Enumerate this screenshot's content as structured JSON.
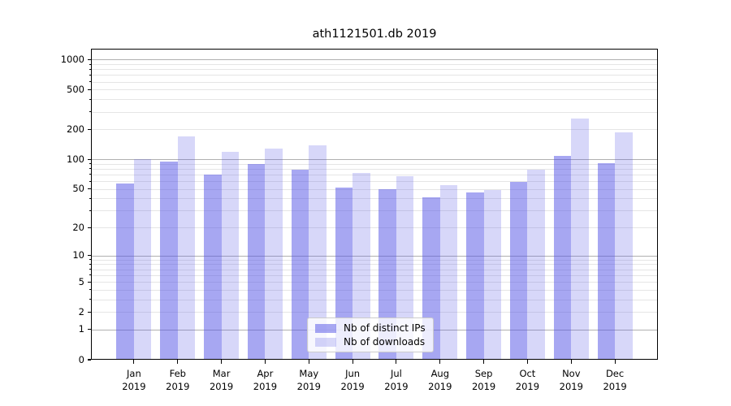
{
  "chart_data": {
    "type": "bar",
    "title": "ath1121501.db 2019",
    "categories": [
      {
        "month": "Jan",
        "year": "2019"
      },
      {
        "month": "Feb",
        "year": "2019"
      },
      {
        "month": "Mar",
        "year": "2019"
      },
      {
        "month": "Apr",
        "year": "2019"
      },
      {
        "month": "May",
        "year": "2019"
      },
      {
        "month": "Jun",
        "year": "2019"
      },
      {
        "month": "Jul",
        "year": "2019"
      },
      {
        "month": "Aug",
        "year": "2019"
      },
      {
        "month": "Sep",
        "year": "2019"
      },
      {
        "month": "Oct",
        "year": "2019"
      },
      {
        "month": "Nov",
        "year": "2019"
      },
      {
        "month": "Dec",
        "year": "2019"
      }
    ],
    "series": [
      {
        "name": "Nb of distinct IPs",
        "color": "rgba(80,80,230,0.5)",
        "values": [
          57,
          94,
          70,
          90,
          79,
          52,
          50,
          41,
          46,
          59,
          109,
          92
        ]
      },
      {
        "name": "Nb of downloads",
        "color": "rgba(80,80,230,0.23)",
        "values": [
          100,
          170,
          118,
          128,
          138,
          73,
          68,
          55,
          49,
          78,
          258,
          187
        ]
      }
    ],
    "yscale": "log1p",
    "ylim": [
      0,
      1286
    ],
    "yticks": [
      1000,
      500,
      200,
      100,
      50,
      20,
      10,
      5,
      2,
      1,
      0
    ],
    "grid": {
      "major": [
        1,
        10,
        100,
        1000
      ],
      "minor": [
        2,
        3,
        4,
        5,
        6,
        7,
        8,
        9,
        20,
        30,
        40,
        50,
        60,
        70,
        80,
        90,
        200,
        300,
        400,
        500,
        600,
        700,
        800,
        900
      ]
    },
    "grid_major_color": "#b0b0b0",
    "grid_minor_color": "#e5e5e5",
    "legend_position": "lower center",
    "xlabel": "",
    "ylabel": ""
  }
}
